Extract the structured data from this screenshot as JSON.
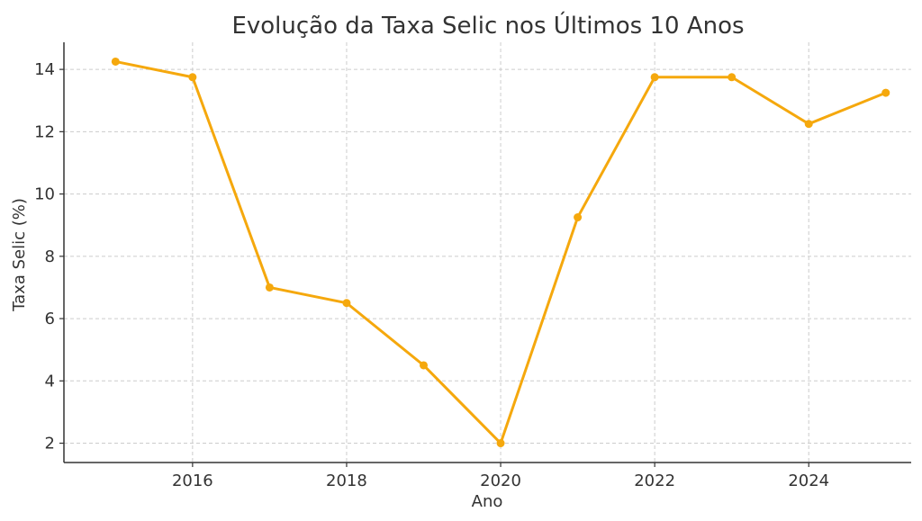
{
  "chart_data": {
    "type": "line",
    "title": "Evolução da Taxa Selic nos Últimos 10 Anos",
    "xlabel": "Ano",
    "ylabel": "Taxa Selic (%)",
    "x": [
      2015,
      2016,
      2017,
      2018,
      2019,
      2020,
      2021,
      2022,
      2023,
      2024,
      2025
    ],
    "series": [
      {
        "values": [
          14.25,
          13.75,
          7.0,
          6.5,
          4.5,
          2.0,
          9.25,
          13.75,
          13.75,
          12.25,
          13.25
        ],
        "color": "#f5a80d",
        "marker": "circle"
      }
    ],
    "xlim": [
      2014.33,
      2025.33
    ],
    "ylim": [
      1.38,
      14.87
    ],
    "xticks": [
      2016,
      2018,
      2020,
      2022,
      2024
    ],
    "yticks": [
      2,
      4,
      6,
      8,
      10,
      12,
      14
    ],
    "grid": true,
    "legend": "none"
  }
}
